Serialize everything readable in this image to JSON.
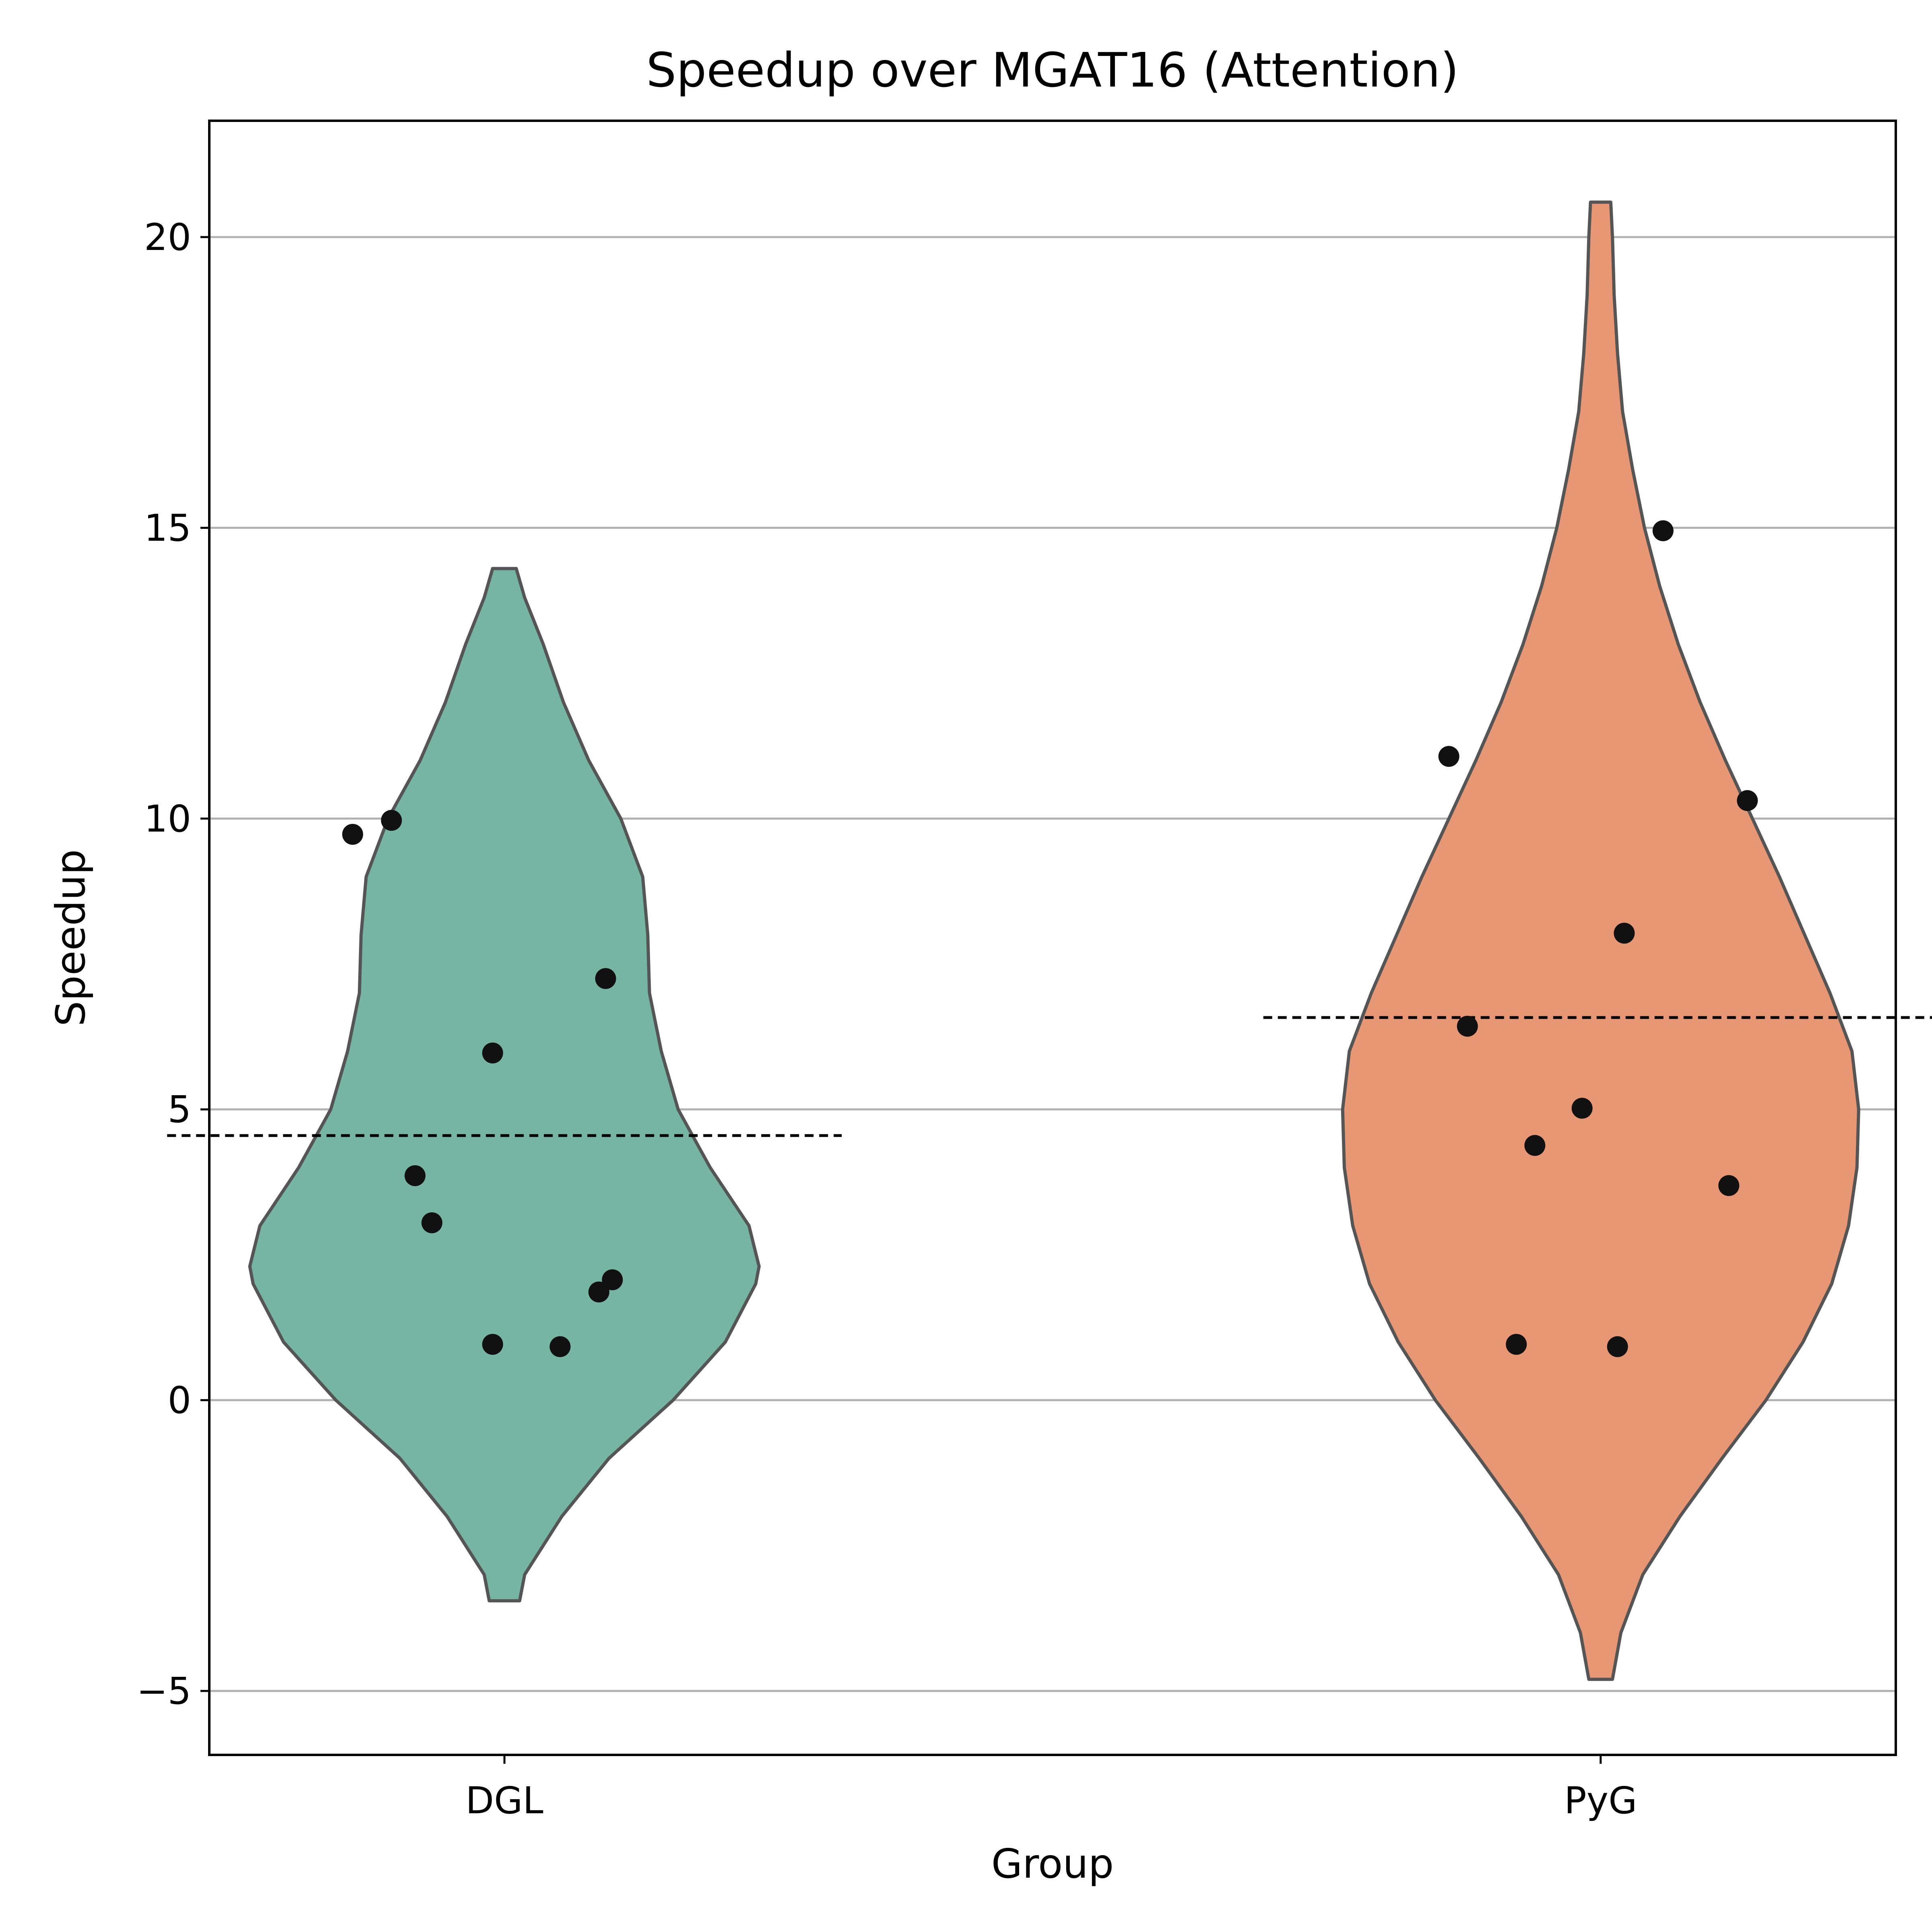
{
  "chart_data": {
    "type": "violin",
    "title": "Speedup over MGAT16 (Attention)",
    "xlabel": "Group",
    "ylabel": "Speedup",
    "ylim": [
      -6.1,
      22.0
    ],
    "yticks": [
      {
        "value": -5,
        "label": "−5"
      },
      {
        "value": 0,
        "label": "0"
      },
      {
        "value": 5,
        "label": "5"
      },
      {
        "value": 10,
        "label": "10"
      },
      {
        "value": 15,
        "label": "15"
      },
      {
        "value": 20,
        "label": "20"
      }
    ],
    "grid": "horizontal",
    "categories": [
      "DGL",
      "PyG"
    ],
    "series": [
      {
        "category": "DGL",
        "color": "#75b5a1",
        "mean": 4.55,
        "points": [
          {
            "dx": -0.09,
            "y": 9.73
          },
          {
            "dx": -0.067,
            "y": 9.97
          },
          {
            "dx": -0.053,
            "y": 3.86
          },
          {
            "dx": -0.043,
            "y": 3.05
          },
          {
            "dx": -0.007,
            "y": 5.97
          },
          {
            "dx": -0.007,
            "y": 0.96
          },
          {
            "dx": 0.033,
            "y": 0.92
          },
          {
            "dx": 0.056,
            "y": 1.86
          },
          {
            "dx": 0.06,
            "y": 7.25
          },
          {
            "dx": 0.064,
            "y": 2.07
          }
        ],
        "density": [
          {
            "y": -3.45,
            "w": 0.009
          },
          {
            "y": -3.0,
            "w": 0.012
          },
          {
            "y": -2.0,
            "w": 0.034
          },
          {
            "y": -1.0,
            "w": 0.062
          },
          {
            "y": 0.0,
            "w": 0.1
          },
          {
            "y": 1.0,
            "w": 0.131
          },
          {
            "y": 2.0,
            "w": 0.149
          },
          {
            "y": 2.3,
            "w": 0.151
          },
          {
            "y": 3.0,
            "w": 0.145
          },
          {
            "y": 4.0,
            "w": 0.122
          },
          {
            "y": 5.0,
            "w": 0.103
          },
          {
            "y": 6.0,
            "w": 0.093
          },
          {
            "y": 7.0,
            "w": 0.086
          },
          {
            "y": 8.0,
            "w": 0.085
          },
          {
            "y": 9.0,
            "w": 0.082
          },
          {
            "y": 10.0,
            "w": 0.069
          },
          {
            "y": 11.0,
            "w": 0.05
          },
          {
            "y": 12.0,
            "w": 0.035
          },
          {
            "y": 13.0,
            "w": 0.023
          },
          {
            "y": 13.8,
            "w": 0.012
          },
          {
            "y": 14.3,
            "w": 0.007
          }
        ]
      },
      {
        "category": "PyG",
        "color": "#e89774",
        "mean": 6.58,
        "points": [
          {
            "dx": -0.09,
            "y": 11.07
          },
          {
            "dx": -0.079,
            "y": 6.43
          },
          {
            "dx": -0.05,
            "y": 0.96
          },
          {
            "dx": -0.039,
            "y": 4.38
          },
          {
            "dx": -0.011,
            "y": 5.02
          },
          {
            "dx": 0.01,
            "y": 0.92
          },
          {
            "dx": 0.014,
            "y": 8.03
          },
          {
            "dx": 0.037,
            "y": 14.95
          },
          {
            "dx": 0.076,
            "y": 3.69
          },
          {
            "dx": 0.087,
            "y": 10.31
          }
        ],
        "density": [
          {
            "y": -4.8,
            "w": 0.007
          },
          {
            "y": -4.0,
            "w": 0.012
          },
          {
            "y": -3.0,
            "w": 0.025
          },
          {
            "y": -2.0,
            "w": 0.047
          },
          {
            "y": -1.0,
            "w": 0.072
          },
          {
            "y": 0.0,
            "w": 0.098
          },
          {
            "y": 1.0,
            "w": 0.12
          },
          {
            "y": 2.0,
            "w": 0.137
          },
          {
            "y": 3.0,
            "w": 0.147
          },
          {
            "y": 4.0,
            "w": 0.152
          },
          {
            "y": 5.0,
            "w": 0.153
          },
          {
            "y": 6.0,
            "w": 0.149
          },
          {
            "y": 7.0,
            "w": 0.136
          },
          {
            "y": 8.0,
            "w": 0.121
          },
          {
            "y": 9.0,
            "w": 0.106
          },
          {
            "y": 10.0,
            "w": 0.09
          },
          {
            "y": 11.0,
            "w": 0.074
          },
          {
            "y": 12.0,
            "w": 0.059
          },
          {
            "y": 13.0,
            "w": 0.046
          },
          {
            "y": 14.0,
            "w": 0.035
          },
          {
            "y": 15.0,
            "w": 0.026
          },
          {
            "y": 16.0,
            "w": 0.019
          },
          {
            "y": 17.0,
            "w": 0.013
          },
          {
            "y": 18.0,
            "w": 0.01
          },
          {
            "y": 19.0,
            "w": 0.008
          },
          {
            "y": 20.0,
            "w": 0.007
          },
          {
            "y": 20.6,
            "w": 0.006
          }
        ]
      }
    ]
  }
}
